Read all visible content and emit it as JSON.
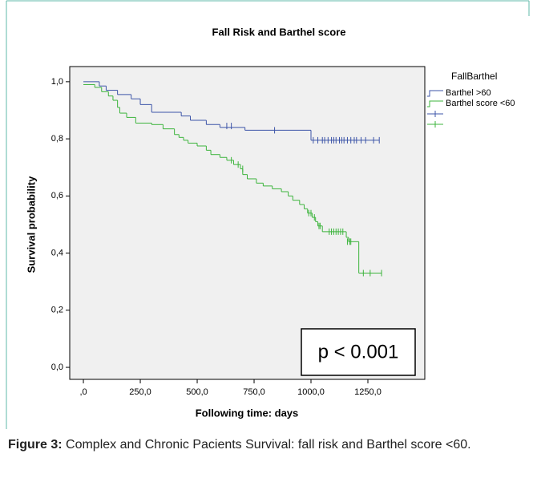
{
  "chart_data": {
    "type": "kaplan-meier",
    "title": "Fall Risk and Barthel score",
    "x_label": "Following time: days",
    "y_label": "Survival probability",
    "legend_title": "FallBarthel",
    "annotation": "p < 0.001",
    "xlim": [
      -60,
      1500
    ],
    "ylim": [
      -0.042,
      1.053
    ],
    "xticks": [
      {
        "value": 0,
        "label": ",0"
      },
      {
        "value": 250,
        "label": "250,0"
      },
      {
        "value": 500,
        "label": "500,0"
      },
      {
        "value": 750,
        "label": "750,0"
      },
      {
        "value": 1000,
        "label": "1000,0"
      },
      {
        "value": 1250,
        "label": "1250,0"
      }
    ],
    "yticks": [
      {
        "value": 0,
        "label": "0,0"
      },
      {
        "value": 0.2,
        "label": "0,2"
      },
      {
        "value": 0.4,
        "label": "0,4"
      },
      {
        "value": 0.6,
        "label": "0,6"
      },
      {
        "value": 0.8,
        "label": "0,8"
      },
      {
        "value": 1,
        "label": "1,0"
      }
    ],
    "series": [
      {
        "name": "Barthel >60",
        "color": "#3d55a8",
        "x": [
          0,
          70,
          100,
          150,
          210,
          250,
          300,
          430,
          470,
          540,
          600,
          710,
          1000,
          1300
        ],
        "values": [
          1.0,
          0.985,
          0.97,
          0.955,
          0.94,
          0.92,
          0.893,
          0.88,
          0.865,
          0.85,
          0.84,
          0.83,
          0.795,
          0.795
        ],
        "censored": {
          "x": [
            630,
            650,
            840,
            1010,
            1030,
            1050,
            1060,
            1075,
            1090,
            1100,
            1110,
            1125,
            1135,
            1145,
            1160,
            1175,
            1190,
            1200,
            1220,
            1240,
            1275,
            1300
          ],
          "values": [
            0.845,
            0.845,
            0.83,
            0.795,
            0.795,
            0.795,
            0.795,
            0.795,
            0.795,
            0.795,
            0.795,
            0.795,
            0.795,
            0.795,
            0.795,
            0.795,
            0.795,
            0.795,
            0.795,
            0.795,
            0.795,
            0.795
          ]
        }
      },
      {
        "name": "Barthel score <60",
        "color": "#3cb43c",
        "x": [
          0,
          50,
          80,
          110,
          130,
          150,
          160,
          190,
          230,
          300,
          350,
          400,
          420,
          440,
          460,
          500,
          540,
          560,
          600,
          630,
          660,
          690,
          700,
          720,
          760,
          790,
          830,
          870,
          900,
          920,
          950,
          970,
          985,
          1005,
          1020,
          1030,
          1050,
          1155,
          1165,
          1210,
          1310
        ],
        "values": [
          0.99,
          0.98,
          0.965,
          0.95,
          0.935,
          0.91,
          0.89,
          0.875,
          0.855,
          0.85,
          0.835,
          0.815,
          0.805,
          0.795,
          0.785,
          0.775,
          0.76,
          0.745,
          0.735,
          0.725,
          0.71,
          0.695,
          0.675,
          0.66,
          0.645,
          0.635,
          0.625,
          0.615,
          0.6,
          0.585,
          0.57,
          0.555,
          0.54,
          0.525,
          0.51,
          0.495,
          0.475,
          0.455,
          0.44,
          0.33,
          0.33
        ],
        "censored": {
          "x": [
            650,
            680,
            700,
            990,
            1000,
            1015,
            1035,
            1040,
            1080,
            1090,
            1100,
            1110,
            1120,
            1130,
            1140,
            1160,
            1170,
            1175,
            1230,
            1260,
            1310
          ],
          "values": [
            0.725,
            0.71,
            0.695,
            0.54,
            0.54,
            0.525,
            0.495,
            0.495,
            0.475,
            0.475,
            0.475,
            0.475,
            0.475,
            0.475,
            0.475,
            0.44,
            0.44,
            0.44,
            0.33,
            0.33,
            0.33
          ]
        }
      }
    ]
  },
  "caption": {
    "label": "Figure 3:",
    "text": "Complex and Chronic Pacients Survival: fall risk and Barthel score <60."
  }
}
